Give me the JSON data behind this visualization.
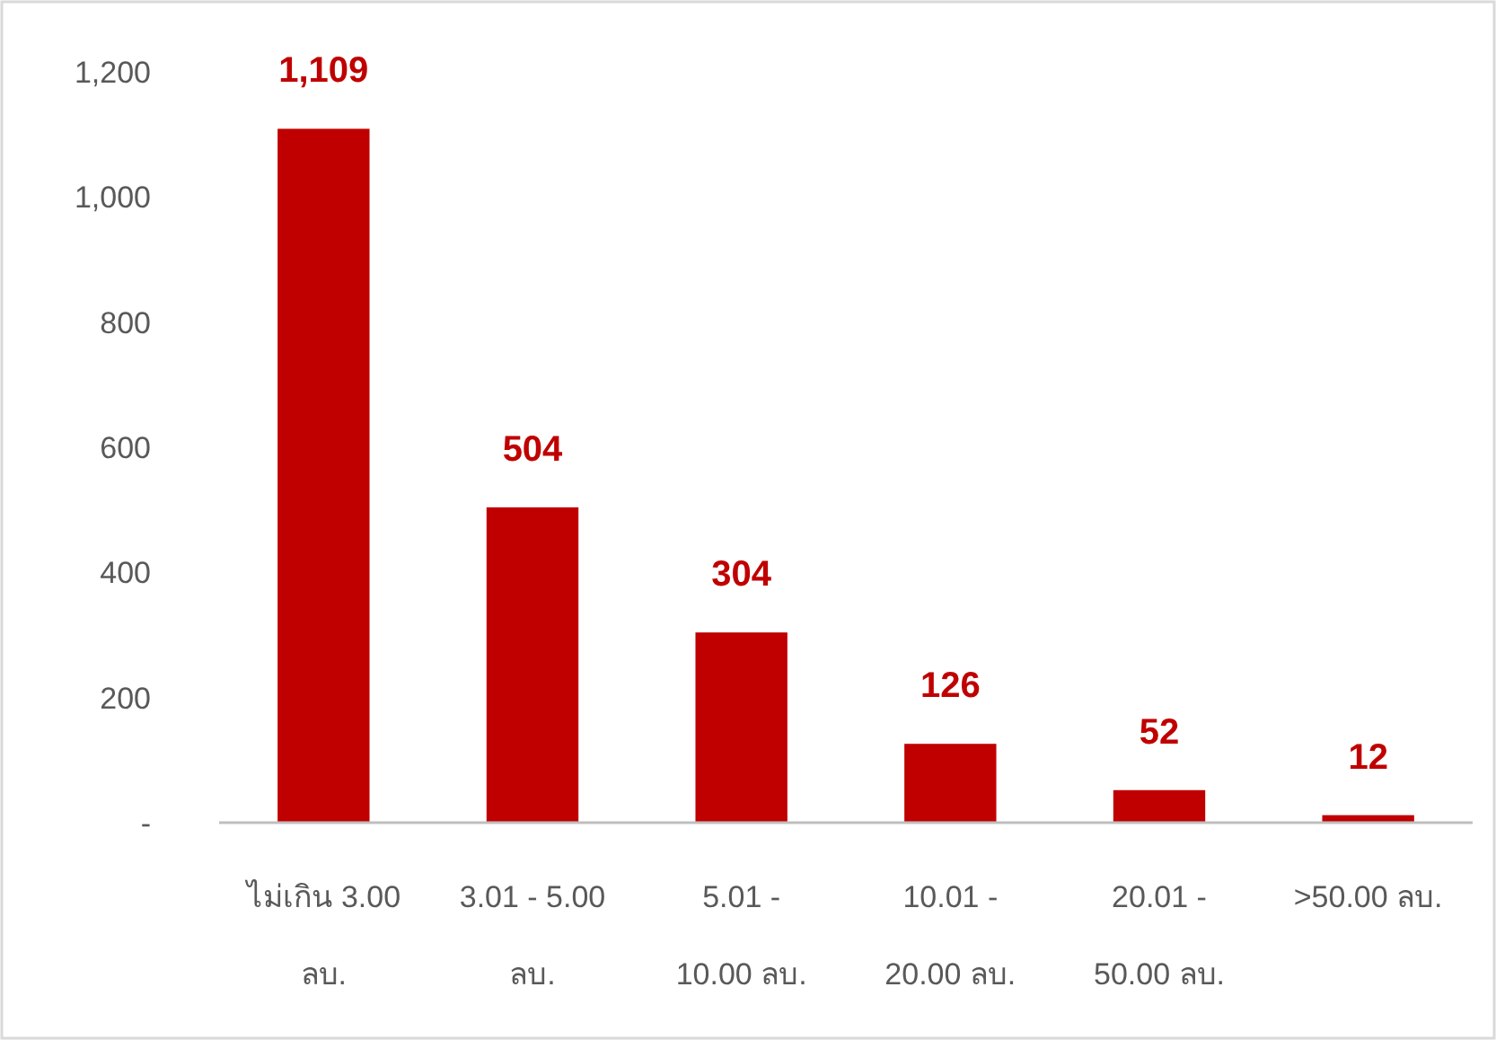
{
  "chart_data": {
    "type": "bar",
    "categories": [
      "ไม่เกิน 3.00 ลบ.",
      "3.01 - 5.00 ลบ.",
      "5.01 - 10.00 ลบ.",
      "10.01 - 20.00 ลบ.",
      "20.01 - 50.00 ลบ.",
      ">50.00 ลบ."
    ],
    "values": [
      1109,
      504,
      304,
      126,
      52,
      12
    ],
    "value_labels": [
      "1,109",
      "504",
      "304",
      "126",
      "52",
      "12"
    ],
    "color": "#c00000",
    "ylim": [
      0,
      1200
    ],
    "yticks": [
      {
        "value": 0,
        "label": "-"
      },
      {
        "value": 200,
        "label": "200"
      },
      {
        "value": 400,
        "label": "400"
      },
      {
        "value": 600,
        "label": "600"
      },
      {
        "value": 800,
        "label": "800"
      },
      {
        "value": 1000,
        "label": "1,000"
      },
      {
        "value": 1200,
        "label": "1,200"
      }
    ],
    "grid": false
  }
}
